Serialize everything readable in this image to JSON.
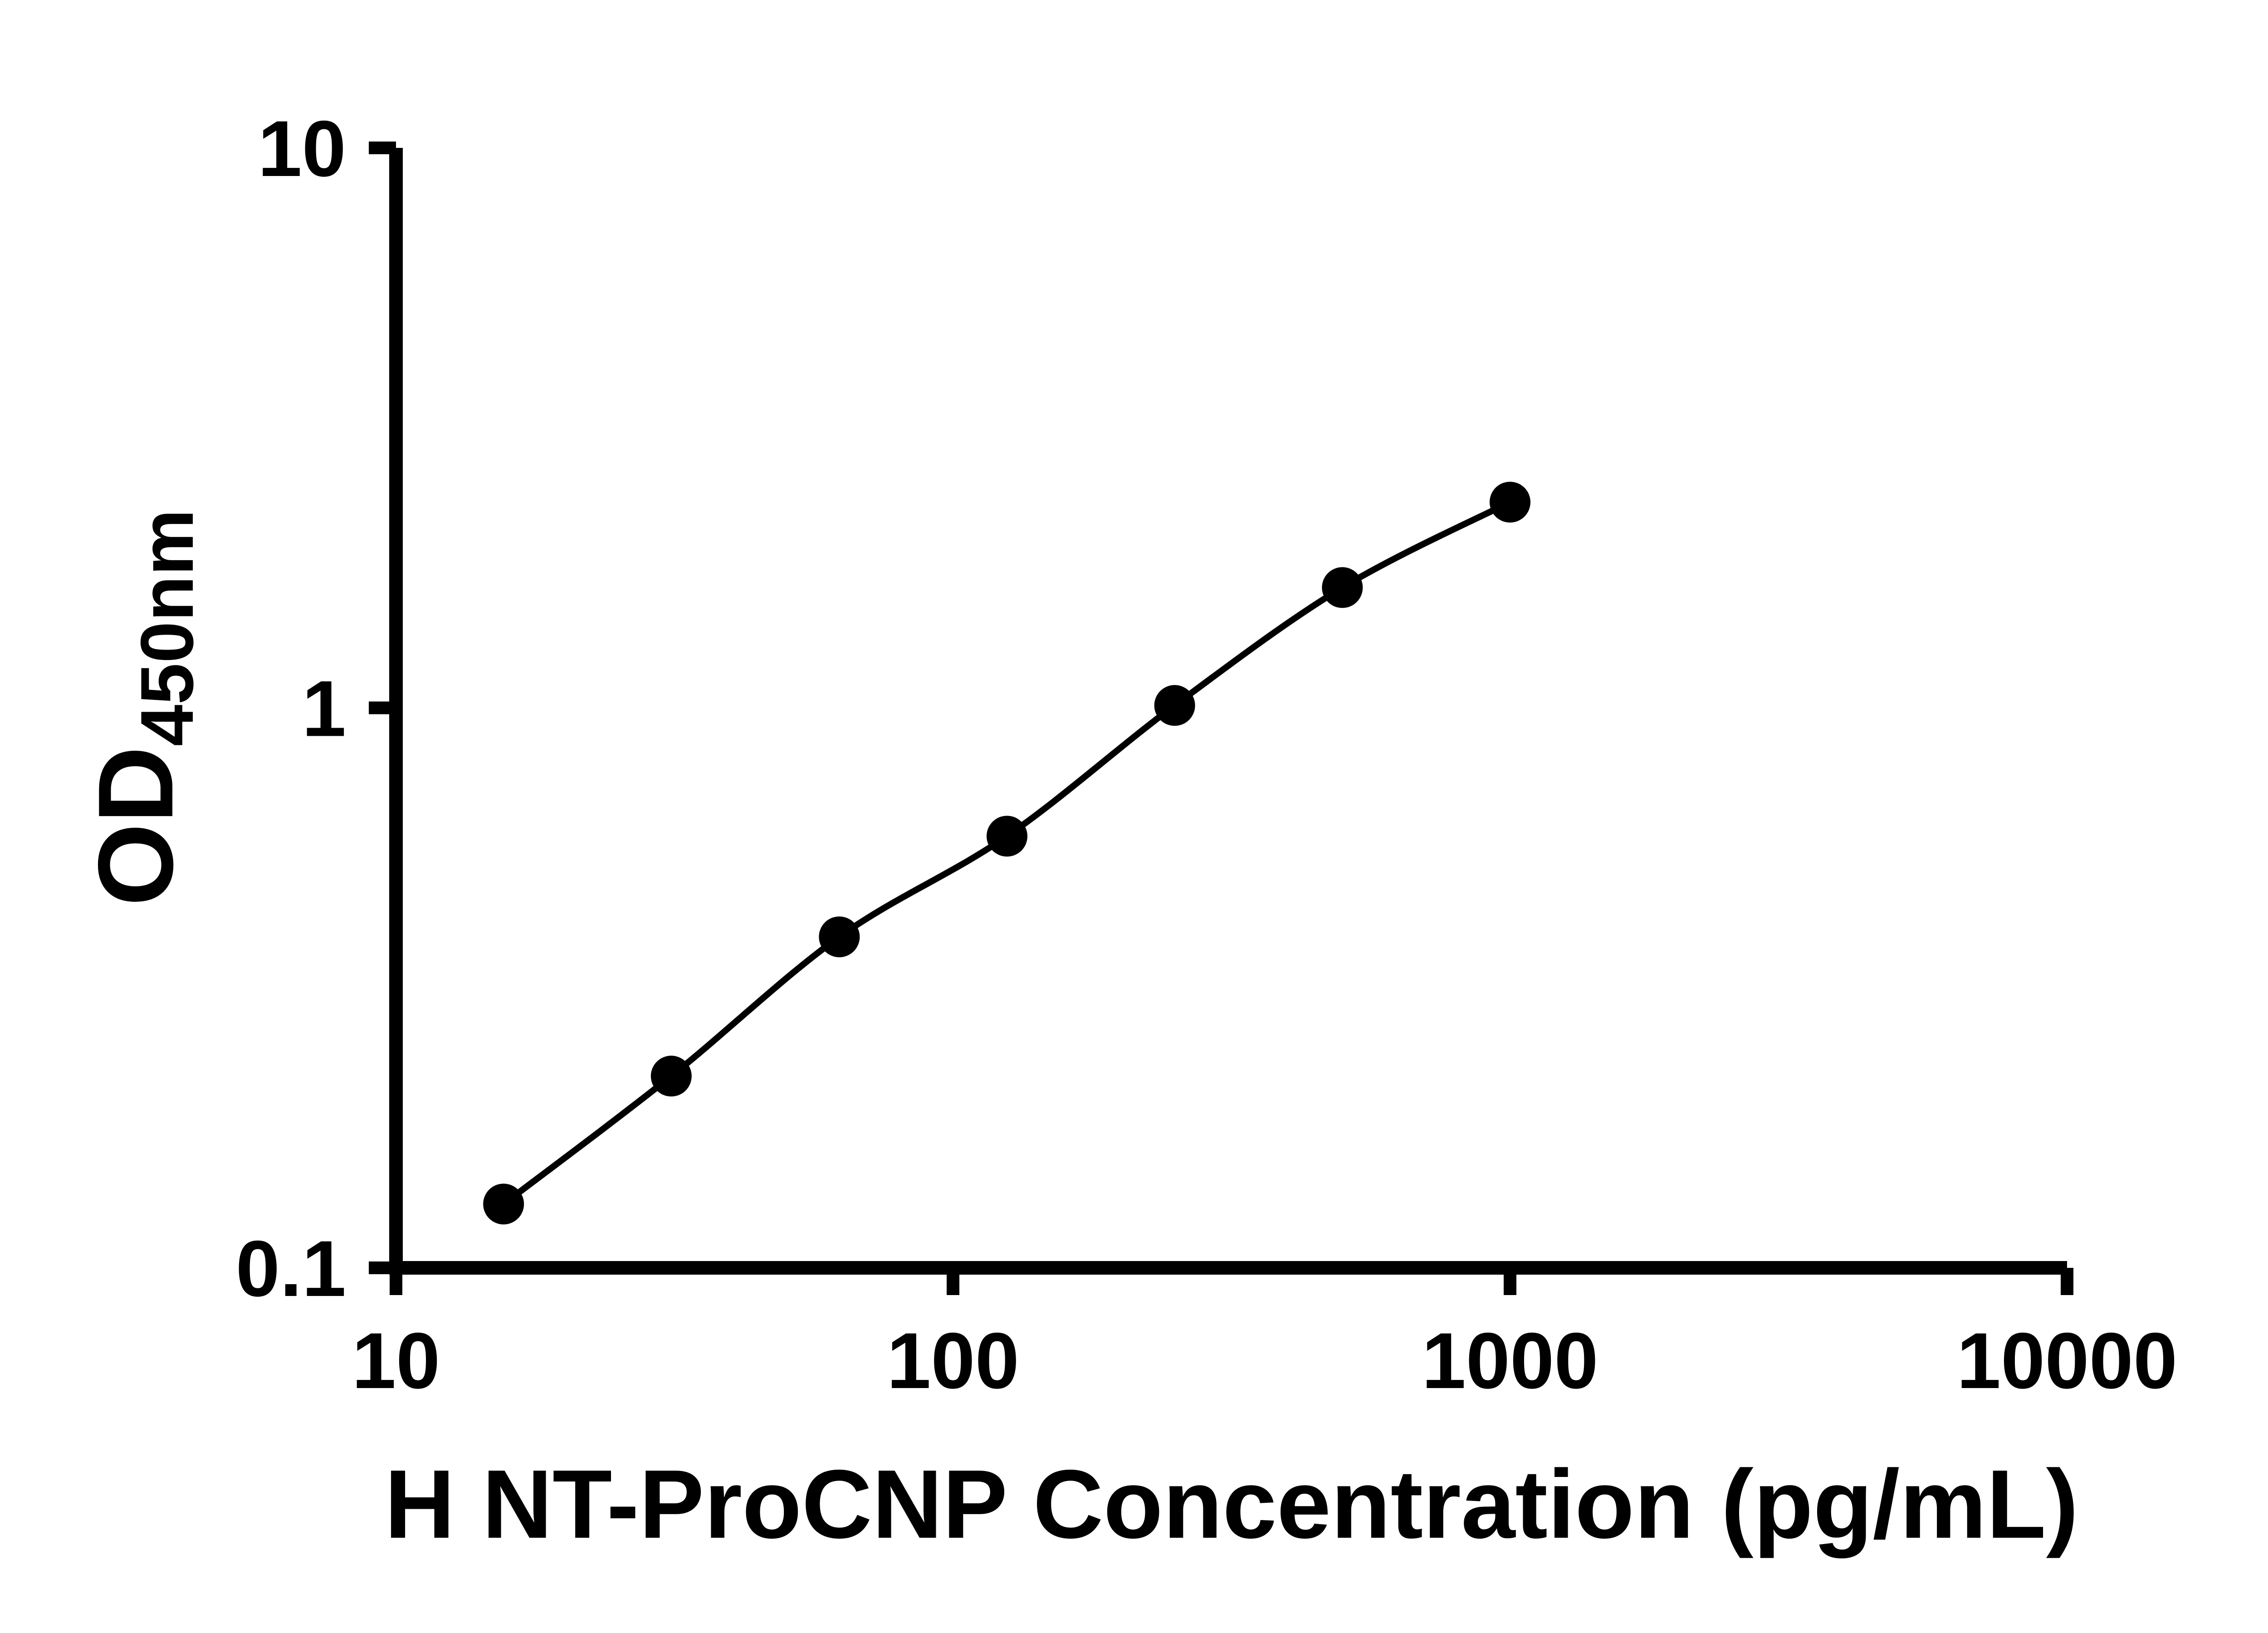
{
  "figure": {
    "background_color": "#ffffff"
  },
  "chart_data": {
    "type": "scatter",
    "xlabel": "H NT-ProCNP Concentration (pg/mL)",
    "ylabel_main": "OD",
    "ylabel_sub": "450nm",
    "x_scale": "log",
    "y_scale": "log",
    "xlim": [
      10,
      10000
    ],
    "ylim": [
      0.1,
      10
    ],
    "x_ticks": [
      10,
      100,
      1000,
      10000
    ],
    "x_tick_labels": [
      "10",
      "100",
      "1000",
      "10000"
    ],
    "y_ticks": [
      0.1,
      1,
      10
    ],
    "y_tick_labels": [
      "0.1",
      "1",
      "10"
    ],
    "grid": false,
    "legend": null,
    "axis_color": "#000000",
    "series": [
      {
        "x": [
          15.6,
          31.2,
          62.5,
          125,
          250,
          500,
          1000
        ],
        "y": [
          0.13,
          0.22,
          0.39,
          0.59,
          1.01,
          1.64,
          2.33
        ],
        "marker": "circle",
        "marker_color": "#000000",
        "line_color": "#000000",
        "line_style": "smooth"
      }
    ]
  }
}
